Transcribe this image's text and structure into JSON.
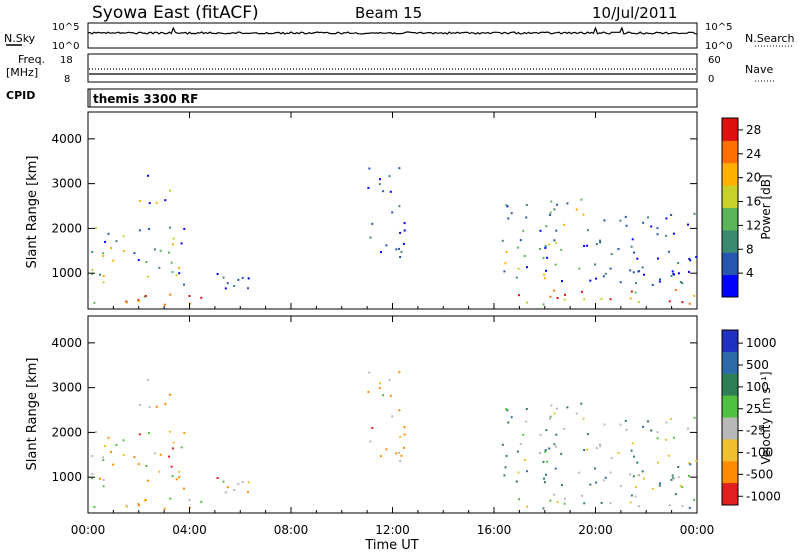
{
  "header": {
    "station": "Syowa East (fitACF)",
    "beam": "Beam 15",
    "date": "10/Jul/2011"
  },
  "noise_panel": {
    "left_label": "N.Sky",
    "right_label": "N.Search",
    "left_ticks": [
      "10^5",
      "10^0"
    ],
    "right_ticks": [
      "10^5",
      "10^0"
    ]
  },
  "freq_panel": {
    "left_label_1": "Freq.",
    "left_label_2": "[MHz]",
    "left_ticks": [
      "18",
      "8"
    ],
    "right_label": "Nave",
    "right_ticks": [
      "60",
      "0"
    ]
  },
  "cpid_panel": {
    "label": "CPID",
    "program": "themis 3300 RF"
  },
  "y_axis": {
    "label": "Slant Range [km]",
    "ticks": [
      "1000",
      "2000",
      "3000",
      "4000"
    ],
    "range": [
      200,
      4600
    ]
  },
  "x_axis": {
    "label": "Time UT",
    "ticks": [
      "00:00",
      "04:00",
      "08:00",
      "12:00",
      "16:00",
      "20:00",
      "00:00"
    ],
    "range_hours": [
      0,
      24
    ]
  },
  "power_scale": {
    "label": "Power [dB]",
    "ticks": [
      "4",
      "8",
      "12",
      "16",
      "20",
      "24",
      "28"
    ],
    "range": [
      0,
      30
    ]
  },
  "velocity_scale": {
    "label": "Velocity  [m s⁻¹]",
    "ticks": [
      "1000",
      "500",
      "100",
      "25",
      "-25",
      "-100",
      "-500",
      "-1000"
    ]
  },
  "colors": {
    "power": [
      "#0000ff",
      "#2656b0",
      "#3a8a70",
      "#5ab55a",
      "#c8d02a",
      "#ffb000",
      "#ff7000",
      "#e01010"
    ],
    "velocity": [
      "#2030c0",
      "#2e6aa8",
      "#2f7f56",
      "#50c040",
      "#b8b8b8",
      "#f0c030",
      "#ff8c00",
      "#e02020"
    ]
  },
  "chart_data": {
    "type": "heatmap",
    "panels": [
      "Power [dB]",
      "Velocity  [m s⁻¹]"
    ],
    "x_unit": "hours UT",
    "y_unit": "km",
    "scatter_regions": [
      {
        "t_start": 0.1,
        "t_end": 5.0,
        "r_start": 250,
        "r_end": 500,
        "level": "high"
      },
      {
        "t_start": 0.1,
        "t_end": 4.0,
        "r_start": 600,
        "r_end": 2000,
        "level": "mid"
      },
      {
        "t_start": 2.0,
        "t_end": 3.5,
        "r_start": 2500,
        "r_end": 3400,
        "level": "mid"
      },
      {
        "t_start": 5.0,
        "t_end": 6.5,
        "r_start": 600,
        "r_end": 1000,
        "level": "low"
      },
      {
        "t_start": 11.0,
        "t_end": 12.5,
        "r_start": 1300,
        "r_end": 3400,
        "level": "low"
      },
      {
        "t_start": 16.0,
        "t_end": 24.0,
        "r_start": 250,
        "r_end": 600,
        "level": "high"
      },
      {
        "t_start": 16.3,
        "t_end": 19.5,
        "r_start": 800,
        "r_end": 2700,
        "level": "mid"
      },
      {
        "t_start": 19.5,
        "t_end": 24.0,
        "r_start": 700,
        "r_end": 2400,
        "level": "low"
      }
    ]
  }
}
